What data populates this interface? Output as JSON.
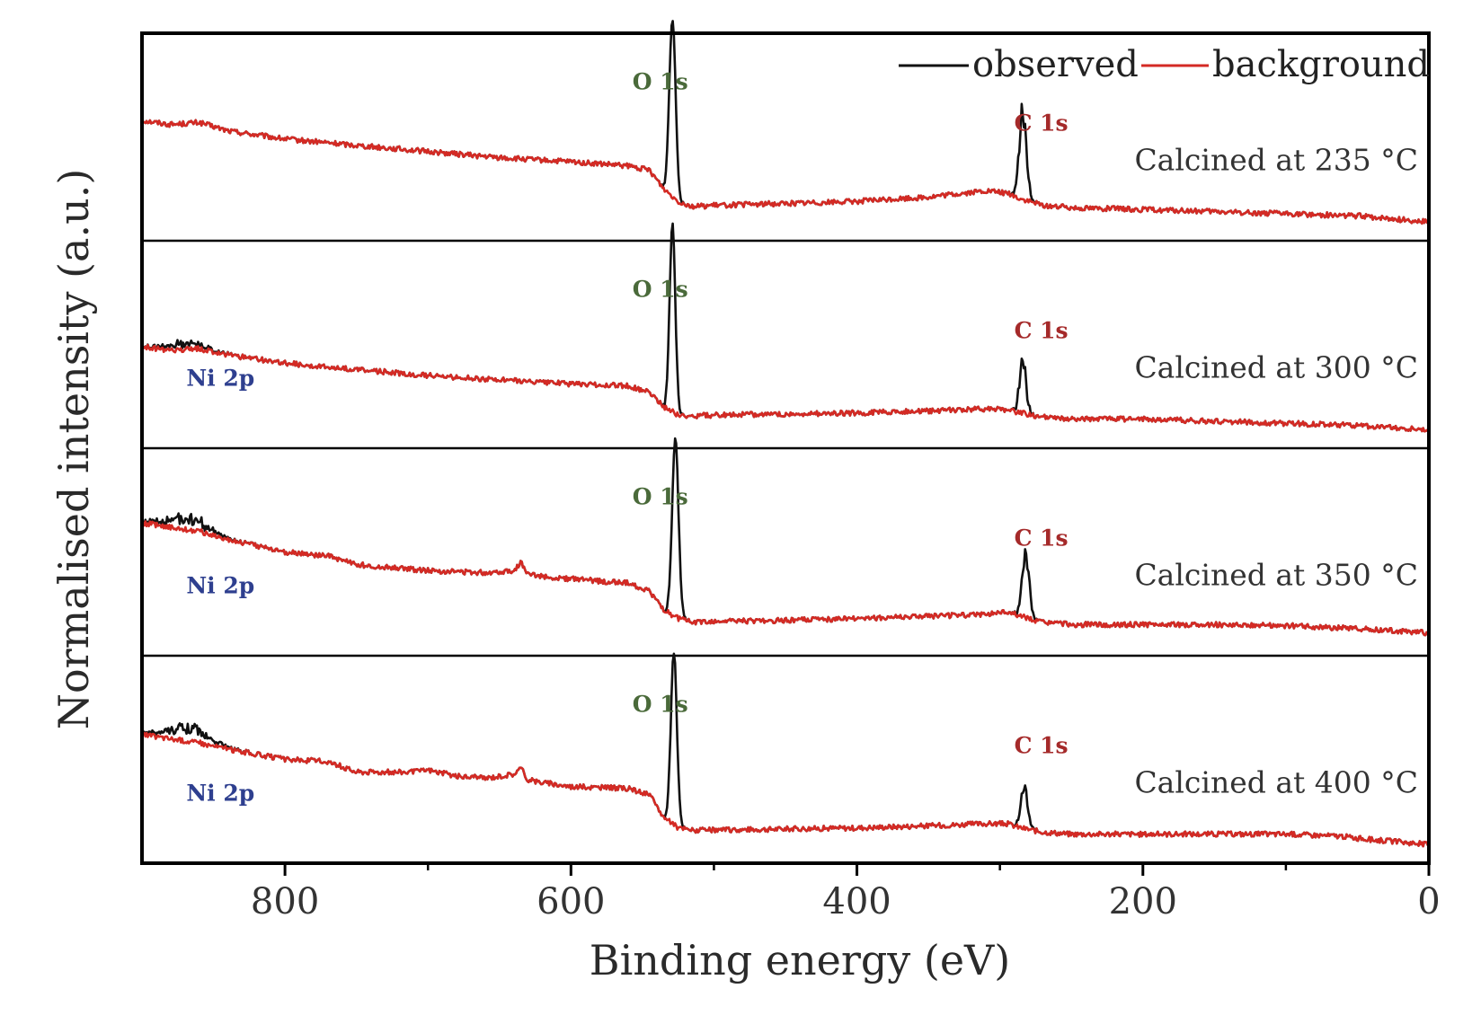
{
  "chart_data": {
    "type": "line",
    "title": "",
    "xlabel": "Binding energy (eV)",
    "ylabel": "Normalised intensity (a.u.)",
    "xlim": [
      900,
      0
    ],
    "x_reversed": true,
    "x_ticks": [
      800,
      600,
      400,
      200,
      0
    ],
    "x_minor_ticks": [
      700,
      500,
      300,
      100
    ],
    "y_ticks": [],
    "grid": false,
    "legend": {
      "position": "top-right",
      "entries": [
        {
          "label": "observed",
          "color": "#111111"
        },
        {
          "label": "background",
          "color": "#d42a24"
        }
      ]
    },
    "colors": {
      "O1s_label": "#4a6a3a",
      "C1s_label": "#a52a2a",
      "Ni2p_label": "#2e3f8f"
    },
    "panels": [
      {
        "condition": "Calcined at 235 °C",
        "background": [
          [
            900,
            0.58
          ],
          [
            880,
            0.56
          ],
          [
            860,
            0.57
          ],
          [
            840,
            0.53
          ],
          [
            800,
            0.49
          ],
          [
            750,
            0.46
          ],
          [
            700,
            0.43
          ],
          [
            650,
            0.4
          ],
          [
            600,
            0.38
          ],
          [
            560,
            0.36
          ],
          [
            545,
            0.34
          ],
          [
            535,
            0.25
          ],
          [
            525,
            0.19
          ],
          [
            515,
            0.165
          ],
          [
            500,
            0.17
          ],
          [
            450,
            0.18
          ],
          [
            400,
            0.19
          ],
          [
            350,
            0.21
          ],
          [
            310,
            0.24
          ],
          [
            295,
            0.23
          ],
          [
            285,
            0.2
          ],
          [
            270,
            0.17
          ],
          [
            250,
            0.16
          ],
          [
            200,
            0.15
          ],
          [
            150,
            0.14
          ],
          [
            100,
            0.13
          ],
          [
            50,
            0.12
          ],
          [
            0,
            0.09
          ]
        ],
        "peaks": [
          {
            "label": "O 1s",
            "center": 529,
            "height": 0.86,
            "sigma": 2.2
          },
          {
            "label": "C 1s",
            "center": 284,
            "height": 0.42,
            "sigma": 2.5
          }
        ],
        "labels": [
          {
            "text": "O 1s",
            "x": 557
          },
          {
            "text": "C 1s",
            "x": 290
          }
        ]
      },
      {
        "condition": "Calcined at 300 °C",
        "background": [
          [
            900,
            0.49
          ],
          [
            880,
            0.47
          ],
          [
            860,
            0.48
          ],
          [
            840,
            0.45
          ],
          [
            800,
            0.41
          ],
          [
            750,
            0.38
          ],
          [
            700,
            0.35
          ],
          [
            650,
            0.33
          ],
          [
            600,
            0.31
          ],
          [
            560,
            0.3
          ],
          [
            545,
            0.27
          ],
          [
            535,
            0.2
          ],
          [
            525,
            0.16
          ],
          [
            515,
            0.155
          ],
          [
            500,
            0.16
          ],
          [
            450,
            0.165
          ],
          [
            400,
            0.17
          ],
          [
            350,
            0.18
          ],
          [
            310,
            0.19
          ],
          [
            295,
            0.185
          ],
          [
            285,
            0.17
          ],
          [
            270,
            0.15
          ],
          [
            250,
            0.14
          ],
          [
            200,
            0.14
          ],
          [
            150,
            0.13
          ],
          [
            100,
            0.12
          ],
          [
            50,
            0.11
          ],
          [
            0,
            0.09
          ]
        ],
        "peaks": [
          {
            "label": "O 1s",
            "center": 529,
            "height": 0.9,
            "sigma": 2.0
          },
          {
            "label": "C 1s",
            "center": 284,
            "height": 0.25,
            "sigma": 2.3
          },
          {
            "label": "Ni 2p",
            "center": 870,
            "height": 0.03,
            "sigma": 12
          }
        ],
        "labels": [
          {
            "text": "O 1s",
            "x": 557
          },
          {
            "text": "C 1s",
            "x": 290
          },
          {
            "text": "Ni 2p",
            "x": 869
          }
        ]
      },
      {
        "condition": "Calcined at 350 °C",
        "background": [
          [
            900,
            0.64
          ],
          [
            880,
            0.62
          ],
          [
            860,
            0.6
          ],
          [
            840,
            0.56
          ],
          [
            800,
            0.5
          ],
          [
            770,
            0.48
          ],
          [
            750,
            0.44
          ],
          [
            700,
            0.41
          ],
          [
            660,
            0.4
          ],
          [
            640,
            0.41
          ],
          [
            635,
            0.45
          ],
          [
            630,
            0.39
          ],
          [
            600,
            0.37
          ],
          [
            560,
            0.35
          ],
          [
            545,
            0.31
          ],
          [
            535,
            0.22
          ],
          [
            525,
            0.18
          ],
          [
            515,
            0.16
          ],
          [
            500,
            0.165
          ],
          [
            450,
            0.17
          ],
          [
            400,
            0.18
          ],
          [
            350,
            0.19
          ],
          [
            310,
            0.2
          ],
          [
            295,
            0.21
          ],
          [
            285,
            0.19
          ],
          [
            270,
            0.16
          ],
          [
            250,
            0.15
          ],
          [
            200,
            0.15
          ],
          [
            150,
            0.15
          ],
          [
            100,
            0.145
          ],
          [
            50,
            0.13
          ],
          [
            0,
            0.11
          ]
        ],
        "peaks": [
          {
            "label": "O 1s",
            "center": 527,
            "height": 0.86,
            "sigma": 2.2
          },
          {
            "label": "C 1s",
            "center": 282,
            "height": 0.3,
            "sigma": 2.5
          },
          {
            "label": "Ni 2p",
            "center": 868,
            "height": 0.05,
            "sigma": 14
          }
        ],
        "labels": [
          {
            "text": "O 1s",
            "x": 557
          },
          {
            "text": "C 1s",
            "x": 290
          },
          {
            "text": "Ni 2p",
            "x": 869
          }
        ]
      },
      {
        "condition": "Calcined at 400 °C",
        "background": [
          [
            900,
            0.62
          ],
          [
            880,
            0.6
          ],
          [
            860,
            0.58
          ],
          [
            840,
            0.55
          ],
          [
            800,
            0.5
          ],
          [
            770,
            0.49
          ],
          [
            750,
            0.44
          ],
          [
            710,
            0.44
          ],
          [
            700,
            0.45
          ],
          [
            680,
            0.42
          ],
          [
            660,
            0.41
          ],
          [
            640,
            0.43
          ],
          [
            635,
            0.46
          ],
          [
            630,
            0.4
          ],
          [
            600,
            0.37
          ],
          [
            560,
            0.36
          ],
          [
            545,
            0.33
          ],
          [
            535,
            0.22
          ],
          [
            525,
            0.17
          ],
          [
            515,
            0.16
          ],
          [
            500,
            0.16
          ],
          [
            450,
            0.165
          ],
          [
            400,
            0.17
          ],
          [
            350,
            0.18
          ],
          [
            310,
            0.19
          ],
          [
            295,
            0.19
          ],
          [
            285,
            0.17
          ],
          [
            270,
            0.15
          ],
          [
            250,
            0.14
          ],
          [
            200,
            0.14
          ],
          [
            150,
            0.14
          ],
          [
            100,
            0.14
          ],
          [
            60,
            0.13
          ],
          [
            50,
            0.12
          ],
          [
            0,
            0.09
          ]
        ],
        "peaks": [
          {
            "label": "O 1s",
            "center": 528,
            "height": 0.83,
            "sigma": 2.1
          },
          {
            "label": "C 1s",
            "center": 283,
            "height": 0.2,
            "sigma": 2.3
          },
          {
            "label": "Ni 2p",
            "center": 868,
            "height": 0.06,
            "sigma": 14
          }
        ],
        "labels": [
          {
            "text": "O 1s",
            "x": 557
          },
          {
            "text": "C 1s",
            "x": 290
          },
          {
            "text": "Ni 2p",
            "x": 869
          }
        ]
      }
    ]
  }
}
